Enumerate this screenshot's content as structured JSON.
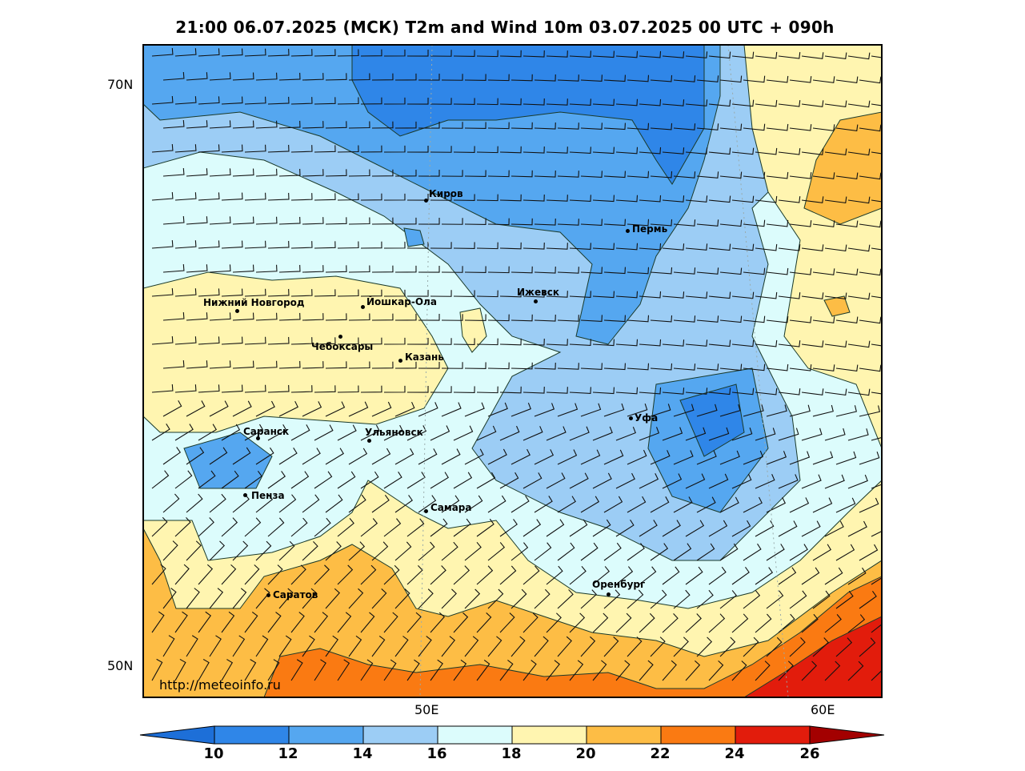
{
  "title": "21:00 06.07.2025 (МСК) T2m and Wind 10m 03.07.2025 00 UTC + 090h",
  "axes": {
    "lat_labels": [
      "70N",
      "50N"
    ],
    "lon_labels": [
      "50E",
      "60E"
    ]
  },
  "cities": [
    {
      "name": "Киров"
    },
    {
      "name": "Пермь"
    },
    {
      "name": "Нижний Новгород"
    },
    {
      "name": "Йошкар-Ола"
    },
    {
      "name": "Ижевск"
    },
    {
      "name": "Чебоксары"
    },
    {
      "name": "Казань"
    },
    {
      "name": "Уфа"
    },
    {
      "name": "Саранск"
    },
    {
      "name": "Ульяновск"
    },
    {
      "name": "Пенза"
    },
    {
      "name": "Самара"
    },
    {
      "name": "Оренбург"
    },
    {
      "name": "Саратов"
    }
  ],
  "watermark": "http://meteoinfo.ru",
  "colorbar": {
    "ticks": [
      "10",
      "12",
      "14",
      "16",
      "18",
      "20",
      "22",
      "24",
      "26"
    ],
    "colors": [
      "#1d6fd8",
      "#2f86e8",
      "#55a7f0",
      "#9ccdf5",
      "#dcfcfc",
      "#fff5b0",
      "#fdbd45",
      "#fa7a12",
      "#e21c0c",
      "#a30000"
    ]
  }
}
